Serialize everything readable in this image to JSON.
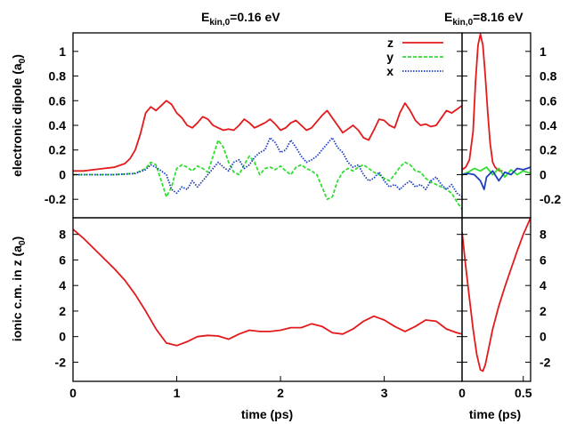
{
  "chart_data": [
    {
      "panel": "top-left",
      "type": "line",
      "title_prefix": "E",
      "title_sub": "kin,0",
      "title_value": "=0.16 eV",
      "ylabel_main": "electronic dipole (a",
      "ylabel_sub": "0",
      "ylabel_end": ")",
      "xlim": [
        0,
        3.75
      ],
      "ylim": [
        -0.35,
        1.15
      ],
      "yticks": [
        -0.2,
        0,
        0.2,
        0.4,
        0.6,
        0.8,
        1
      ],
      "ytick_labels": [
        "-0.2",
        "0",
        "0.2",
        "0.4",
        "0.6",
        "0.8",
        "1"
      ],
      "legend": {
        "position": "top-right"
      },
      "series": [
        {
          "name": "z",
          "color": "#e31a1c",
          "style": "solid",
          "x": [
            0,
            0.1,
            0.2,
            0.3,
            0.4,
            0.5,
            0.55,
            0.6,
            0.65,
            0.7,
            0.75,
            0.8,
            0.85,
            0.9,
            0.95,
            1.0,
            1.05,
            1.1,
            1.15,
            1.2,
            1.25,
            1.3,
            1.35,
            1.4,
            1.45,
            1.5,
            1.55,
            1.6,
            1.65,
            1.7,
            1.75,
            1.8,
            1.85,
            1.9,
            1.95,
            2.0,
            2.05,
            2.1,
            2.15,
            2.2,
            2.25,
            2.3,
            2.35,
            2.4,
            2.45,
            2.5,
            2.55,
            2.6,
            2.65,
            2.7,
            2.75,
            2.8,
            2.85,
            2.9,
            2.95,
            3.0,
            3.05,
            3.1,
            3.15,
            3.2,
            3.25,
            3.3,
            3.35,
            3.4,
            3.45,
            3.5,
            3.55,
            3.6,
            3.65,
            3.7,
            3.75
          ],
          "y": [
            0.03,
            0.03,
            0.04,
            0.05,
            0.06,
            0.09,
            0.13,
            0.2,
            0.33,
            0.5,
            0.55,
            0.52,
            0.56,
            0.6,
            0.57,
            0.5,
            0.46,
            0.4,
            0.38,
            0.42,
            0.47,
            0.45,
            0.4,
            0.38,
            0.36,
            0.37,
            0.36,
            0.4,
            0.45,
            0.42,
            0.38,
            0.4,
            0.42,
            0.45,
            0.41,
            0.36,
            0.38,
            0.42,
            0.44,
            0.4,
            0.36,
            0.38,
            0.43,
            0.48,
            0.52,
            0.46,
            0.4,
            0.34,
            0.37,
            0.4,
            0.36,
            0.3,
            0.28,
            0.36,
            0.45,
            0.44,
            0.4,
            0.38,
            0.5,
            0.58,
            0.52,
            0.44,
            0.4,
            0.41,
            0.39,
            0.4,
            0.46,
            0.52,
            0.5,
            0.53,
            0.56
          ]
        },
        {
          "name": "y",
          "color": "#33dd33",
          "style": "dashed",
          "x": [
            0,
            0.2,
            0.4,
            0.6,
            0.7,
            0.75,
            0.8,
            0.85,
            0.9,
            0.95,
            1.0,
            1.05,
            1.1,
            1.15,
            1.2,
            1.25,
            1.3,
            1.35,
            1.4,
            1.45,
            1.5,
            1.55,
            1.6,
            1.65,
            1.7,
            1.75,
            1.8,
            1.85,
            1.9,
            1.95,
            2.0,
            2.05,
            2.1,
            2.15,
            2.2,
            2.25,
            2.3,
            2.35,
            2.4,
            2.45,
            2.5,
            2.55,
            2.6,
            2.65,
            2.7,
            2.75,
            2.8,
            2.85,
            2.9,
            2.95,
            3.0,
            3.05,
            3.1,
            3.15,
            3.2,
            3.25,
            3.3,
            3.35,
            3.4,
            3.45,
            3.5,
            3.55,
            3.6,
            3.65,
            3.7,
            3.75
          ],
          "y": [
            0,
            0,
            0,
            0.01,
            0.05,
            0.1,
            0.08,
            -0.05,
            -0.18,
            -0.1,
            0.05,
            0.08,
            0.06,
            0.03,
            0.07,
            0.05,
            0.02,
            0.15,
            0.28,
            0.22,
            0.1,
            0.02,
            0.0,
            0.08,
            0.15,
            0.1,
            0.0,
            0.05,
            0.06,
            0.04,
            0.07,
            0.03,
            0.0,
            0.06,
            0.08,
            0.05,
            0.03,
            0.0,
            -0.1,
            -0.2,
            -0.18,
            -0.05,
            0.02,
            0.05,
            0.03,
            0.06,
            0.08,
            0.05,
            0.02,
            0.0,
            -0.03,
            -0.05,
            0.0,
            0.06,
            0.1,
            0.08,
            0.03,
            0.02,
            -0.03,
            -0.06,
            -0.08,
            -0.1,
            -0.12,
            -0.15,
            -0.22,
            -0.28
          ]
        },
        {
          "name": "x",
          "color": "#1f3fbf",
          "style": "dotted",
          "x": [
            0,
            0.2,
            0.4,
            0.6,
            0.7,
            0.75,
            0.8,
            0.85,
            0.9,
            0.95,
            1.0,
            1.05,
            1.1,
            1.15,
            1.2,
            1.25,
            1.3,
            1.35,
            1.4,
            1.45,
            1.5,
            1.55,
            1.6,
            1.65,
            1.7,
            1.75,
            1.8,
            1.85,
            1.9,
            1.95,
            2.0,
            2.05,
            2.1,
            2.15,
            2.2,
            2.25,
            2.3,
            2.35,
            2.4,
            2.45,
            2.5,
            2.55,
            2.6,
            2.65,
            2.7,
            2.75,
            2.8,
            2.85,
            2.9,
            2.95,
            3.0,
            3.05,
            3.1,
            3.15,
            3.2,
            3.25,
            3.3,
            3.35,
            3.4,
            3.45,
            3.5,
            3.55,
            3.6,
            3.65,
            3.7,
            3.75
          ],
          "y": [
            0,
            0,
            0,
            0.01,
            0.04,
            0.08,
            0.06,
            0.03,
            0.0,
            -0.12,
            -0.15,
            -0.1,
            -0.12,
            -0.05,
            -0.1,
            -0.05,
            0.0,
            0.05,
            0.1,
            0.06,
            0.03,
            0.1,
            0.12,
            0.05,
            0.08,
            0.14,
            0.18,
            0.2,
            0.3,
            0.26,
            0.18,
            0.2,
            0.28,
            0.22,
            0.15,
            0.1,
            0.12,
            0.15,
            0.2,
            0.25,
            0.3,
            0.22,
            0.18,
            0.1,
            0.06,
            0.08,
            0.0,
            -0.05,
            -0.03,
            0.02,
            -0.05,
            -0.1,
            -0.08,
            -0.12,
            -0.08,
            -0.05,
            -0.1,
            -0.08,
            -0.12,
            -0.05,
            -0.02,
            -0.08,
            -0.12,
            -0.08,
            -0.15,
            -0.18
          ]
        }
      ]
    },
    {
      "panel": "top-right",
      "type": "line",
      "title_prefix": "E",
      "title_sub": "kin,0",
      "title_value": "=8.16 eV",
      "xlim": [
        0,
        0.56
      ],
      "ylim": [
        -0.35,
        1.15
      ],
      "yticks": [
        -0.2,
        0,
        0.2,
        0.4,
        0.6,
        0.8,
        1
      ],
      "ytick_labels": [
        "-0.2",
        "0",
        "0.2",
        "0.4",
        "0.6",
        "0.8",
        "1"
      ],
      "series": [
        {
          "name": "z",
          "color": "#e31a1c",
          "style": "solid",
          "x": [
            0,
            0.03,
            0.06,
            0.09,
            0.11,
            0.13,
            0.15,
            0.17,
            0.19,
            0.21,
            0.23,
            0.25,
            0.27,
            0.29,
            0.31,
            0.33
          ],
          "y": [
            0.04,
            0.06,
            0.12,
            0.35,
            0.75,
            1.05,
            1.14,
            1.05,
            0.8,
            0.5,
            0.25,
            0.1,
            0.06,
            0.04,
            0.03,
            0.03
          ]
        },
        {
          "name": "y",
          "color": "#33dd33",
          "style": "solid",
          "x": [
            0,
            0.05,
            0.1,
            0.15,
            0.2,
            0.25,
            0.3,
            0.35,
            0.4,
            0.45,
            0.5,
            0.56
          ],
          "y": [
            0,
            0.02,
            0.05,
            0.03,
            0.06,
            0.0,
            0.05,
            -0.02,
            0.04,
            0.0,
            0.03,
            0.01
          ]
        },
        {
          "name": "x",
          "color": "#1f3fbf",
          "style": "solid",
          "x": [
            0,
            0.05,
            0.1,
            0.15,
            0.18,
            0.2,
            0.25,
            0.3,
            0.35,
            0.4,
            0.45,
            0.5,
            0.56
          ],
          "y": [
            0,
            0.01,
            0.0,
            -0.05,
            -0.12,
            -0.02,
            0.03,
            -0.05,
            0.02,
            0.0,
            0.05,
            0.04,
            0.06
          ]
        }
      ]
    },
    {
      "panel": "bottom-left",
      "type": "line",
      "ylabel_main": "ionic c.m. in z (a",
      "ylabel_sub": "0",
      "ylabel_end": ")",
      "xlabel": "time  (ps)",
      "xlim": [
        0,
        3.75
      ],
      "ylim": [
        -3.5,
        9.3
      ],
      "xticks": [
        0,
        1,
        2,
        3
      ],
      "xtick_labels": [
        "0",
        "1",
        "2",
        "3"
      ],
      "yticks": [
        -2,
        0,
        2,
        4,
        6,
        8
      ],
      "ytick_labels": [
        "-2",
        "0",
        "2",
        "4",
        "6",
        "8"
      ],
      "series": [
        {
          "name": "z",
          "color": "#e31a1c",
          "style": "solid",
          "x": [
            0,
            0.1,
            0.2,
            0.3,
            0.4,
            0.5,
            0.6,
            0.7,
            0.8,
            0.9,
            1.0,
            1.1,
            1.2,
            1.3,
            1.4,
            1.5,
            1.6,
            1.7,
            1.8,
            1.9,
            2.0,
            2.1,
            2.2,
            2.3,
            2.4,
            2.5,
            2.6,
            2.7,
            2.8,
            2.9,
            3.0,
            3.1,
            3.2,
            3.3,
            3.4,
            3.5,
            3.6,
            3.7,
            3.75
          ],
          "y": [
            8.4,
            7.7,
            6.9,
            6.1,
            5.3,
            4.4,
            3.3,
            2.0,
            0.6,
            -0.5,
            -0.7,
            -0.4,
            0.0,
            0.1,
            0.05,
            -0.2,
            0.2,
            0.5,
            0.4,
            0.4,
            0.5,
            0.7,
            0.7,
            1.0,
            0.8,
            0.3,
            0.2,
            0.6,
            1.2,
            1.6,
            1.3,
            0.8,
            0.4,
            0.8,
            1.3,
            1.2,
            0.6,
            0.3,
            0.2
          ]
        }
      ]
    },
    {
      "panel": "bottom-right",
      "type": "line",
      "xlabel": "time  (ps)",
      "xlim": [
        0,
        0.56
      ],
      "ylim": [
        -3.5,
        9.3
      ],
      "xticks": [
        0,
        0.5
      ],
      "xtick_labels": [
        "0",
        "0.5"
      ],
      "yticks": [
        -2,
        0,
        2,
        4,
        6,
        8
      ],
      "ytick_labels": [
        "-2",
        "0",
        "2",
        "4",
        "6",
        "8"
      ],
      "series": [
        {
          "name": "z",
          "color": "#e31a1c",
          "style": "solid",
          "x": [
            0,
            0.03,
            0.06,
            0.09,
            0.12,
            0.15,
            0.17,
            0.19,
            0.22,
            0.25,
            0.3,
            0.35,
            0.4,
            0.45,
            0.5,
            0.56
          ],
          "y": [
            8.2,
            5.5,
            3.0,
            0.6,
            -1.4,
            -2.6,
            -2.7,
            -2.2,
            -0.8,
            0.6,
            2.4,
            3.9,
            5.3,
            6.7,
            8.0,
            9.3
          ]
        }
      ]
    }
  ]
}
